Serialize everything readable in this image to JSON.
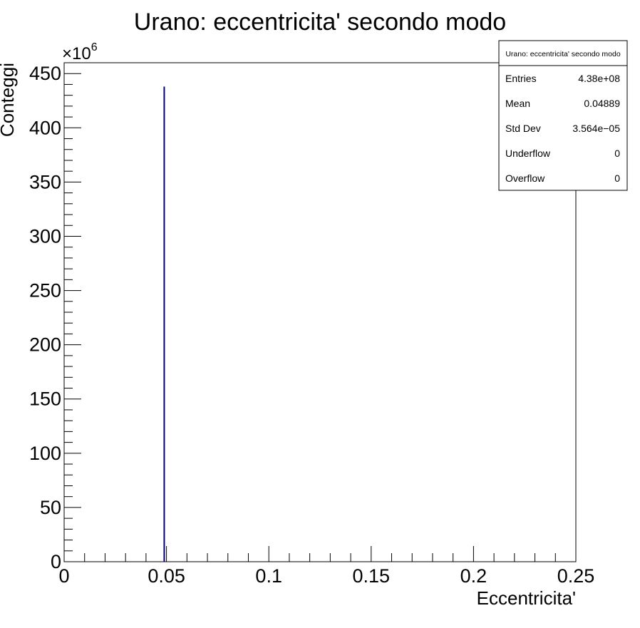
{
  "chart_data": {
    "type": "bar",
    "title": "Urano: eccentricita' secondo modo",
    "xlabel": "Eccentricita'",
    "ylabel": "Conteggi",
    "y_multiplier_label": "×10",
    "y_multiplier_exponent": "6",
    "xlim": [
      0,
      0.25
    ],
    "ylim": [
      0,
      460
    ],
    "x_ticks": [
      0,
      0.05,
      0.1,
      0.15,
      0.2,
      0.25
    ],
    "x_tick_labels": [
      "0",
      "0.05",
      "0.1",
      "0.15",
      "0.2",
      "0.25"
    ],
    "y_ticks": [
      0,
      50,
      100,
      150,
      200,
      250,
      300,
      350,
      400,
      450
    ],
    "y_tick_labels": [
      "0",
      "50",
      "100",
      "150",
      "200",
      "250",
      "300",
      "350",
      "400",
      "450"
    ],
    "x": [
      0.0489
    ],
    "values": [
      438
    ],
    "bar_color": "#000080",
    "grid": false,
    "stats_box": {
      "title": "Urano: eccentricita' secondo modo",
      "placement": "top-right",
      "rows": [
        {
          "label": "Entries",
          "value": "4.38e+08"
        },
        {
          "label": "Mean",
          "value": "0.04889"
        },
        {
          "label": "Std Dev",
          "value": "3.564e−05"
        },
        {
          "label": "Underflow",
          "value": "0"
        },
        {
          "label": "Overflow",
          "value": "0"
        }
      ]
    }
  }
}
